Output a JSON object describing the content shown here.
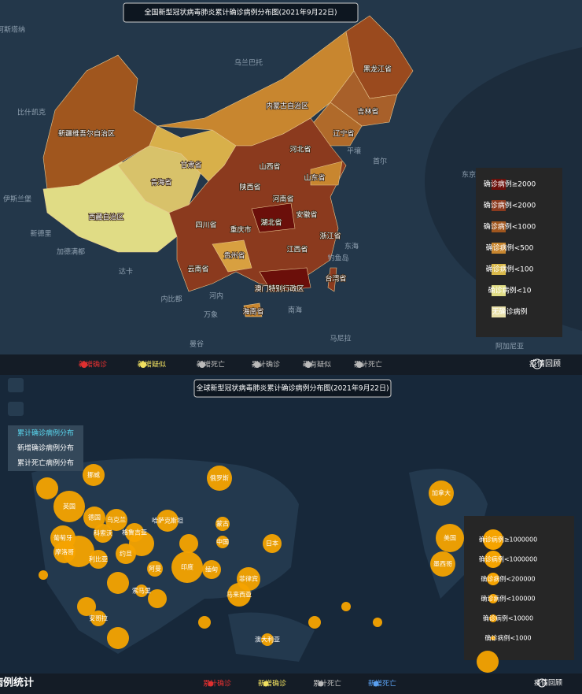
{
  "china_map": {
    "title": "全国新型冠状病毒肺炎累计确诊病例分布图(2021年9月22日)",
    "provinces": [
      "新疆维吾尔自治区",
      "西藏自治区",
      "青海省",
      "甘肃省",
      "内蒙古自治区",
      "黑龙江省",
      "吉林省",
      "辽宁省",
      "河北省",
      "山西省",
      "陕西省",
      "山东省",
      "河南省",
      "四川省",
      "重庆市",
      "湖北省",
      "安徽省",
      "浙江省",
      "贵州省",
      "江西省",
      "云南省",
      "澳门特别行政区",
      "台湾省",
      "海南省"
    ],
    "places": [
      "阿斯塔纳",
      "乌兰巴托",
      "比什凯克",
      "伊斯兰堡",
      "新德里",
      "加德满都",
      "达卡",
      "平壤",
      "首尔",
      "东京",
      "内比都",
      "河内",
      "万象",
      "曼谷",
      "马尼拉",
      "阿加尼亚",
      "东海",
      "南海",
      "钓鱼岛"
    ],
    "legend": [
      "确诊病例≥2000",
      "确诊病例<2000",
      "确诊病例<1000",
      "确诊病例<500",
      "确诊病例<100",
      "确诊病例<10",
      "无确诊病例"
    ],
    "toolbar": [
      "新增确诊",
      "新增疑似",
      "新增死亡",
      "累计确诊",
      "现有疑似",
      "累计死亡"
    ],
    "review_button": "疫情回顾"
  },
  "world_map": {
    "title": "全球新型冠状病毒肺炎累计确诊病例分布图(2021年9月22日)",
    "menu": [
      "累计确诊病例分布",
      "新增确诊病例分布",
      "累计死亡病例分布"
    ],
    "countries": [
      "挪威",
      "俄罗斯",
      "加拿大",
      "英国",
      "乌克兰",
      "德国",
      "蒙古",
      "中国",
      "日本",
      "美国",
      "葡萄牙",
      "科索沃",
      "格鲁吉亚",
      "哈萨克斯坦",
      "摩洛哥",
      "利比亚",
      "约旦",
      "阿曼",
      "印度",
      "缅甸",
      "墨西哥",
      "菲律宾",
      "马来西亚",
      "安哥拉",
      "澳大利亚",
      "索马里"
    ],
    "legend": [
      "确诊病例≥1000000",
      "确诊病例<1000000",
      "确诊病例<200000",
      "确诊病例<100000",
      "确诊病例<10000",
      "确诊病例<1000"
    ],
    "section_title": "全球病例统计",
    "toolbar": [
      "累计确诊",
      "新增确诊",
      "累计死亡",
      "新增死亡"
    ],
    "review_button": "疫情回顾"
  }
}
